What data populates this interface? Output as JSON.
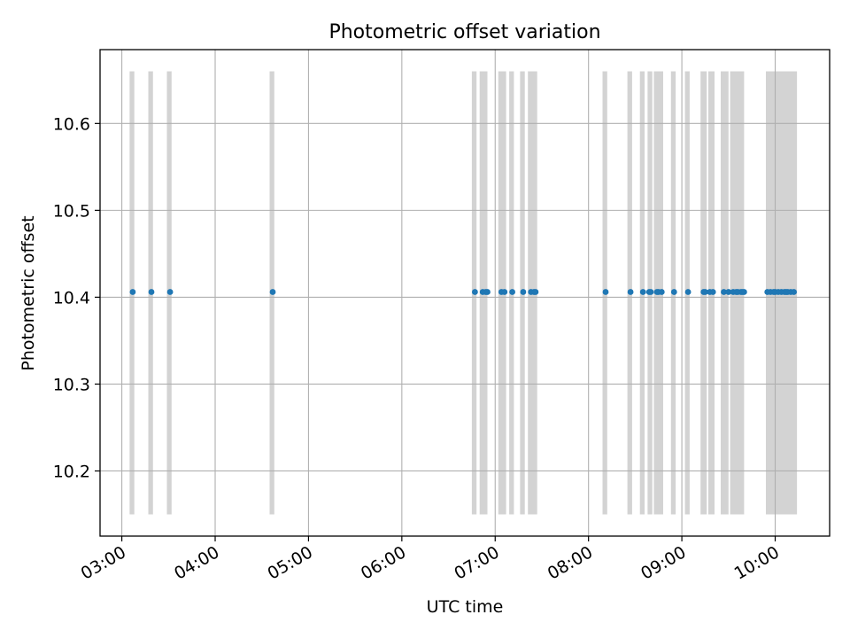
{
  "chart_data": {
    "type": "scatter",
    "title": "Photometric offset variation",
    "xlabel": "UTC time",
    "ylabel": "Photometric offset",
    "xlim": [
      "02:46",
      "10:35"
    ],
    "ylim": [
      10.125,
      10.685
    ],
    "grid": true,
    "x_ticks": [
      "03:00",
      "04:00",
      "05:00",
      "06:00",
      "07:00",
      "08:00",
      "09:00",
      "10:00"
    ],
    "y_ticks": [
      "10.2",
      "10.3",
      "10.4",
      "10.5",
      "10.6"
    ],
    "y_tick_values": [
      10.2,
      10.3,
      10.4,
      10.5,
      10.6
    ],
    "series": [
      {
        "values_y": 10.406,
        "x": [
          "03:07",
          "03:19",
          "03:31",
          "04:37",
          "06:47",
          "06:52",
          "06:54",
          "06:55",
          "07:04",
          "07:06",
          "07:11",
          "07:18",
          "07:23",
          "07:25",
          "07:26",
          "08:11",
          "08:27",
          "08:35",
          "08:39",
          "08:40",
          "08:44",
          "08:45",
          "08:47",
          "08:55",
          "09:04",
          "09:14",
          "09:15",
          "09:18",
          "09:20",
          "09:27",
          "09:30",
          "09:33",
          "09:35",
          "09:36",
          "09:38",
          "09:39",
          "09:40",
          "09:55",
          "09:57",
          "09:59",
          "10:00",
          "10:02",
          "10:04",
          "10:06",
          "10:07",
          "10:08",
          "10:10",
          "10:12"
        ],
        "color": "#1f77b4"
      }
    ],
    "shaded_intervals": {
      "color": "#d3d3d3",
      "y_range": [
        10.15,
        10.66
      ],
      "intervals": [
        [
          "03:05",
          "03:08"
        ],
        [
          "03:17",
          "03:20"
        ],
        [
          "03:29",
          "03:32"
        ],
        [
          "04:35",
          "04:38"
        ],
        [
          "06:45",
          "06:48"
        ],
        [
          "06:50",
          "06:55"
        ],
        [
          "07:02",
          "07:07"
        ],
        [
          "07:09",
          "07:12"
        ],
        [
          "07:16",
          "07:19"
        ],
        [
          "07:21",
          "07:27"
        ],
        [
          "08:09",
          "08:12"
        ],
        [
          "08:25",
          "08:28"
        ],
        [
          "08:33",
          "08:36"
        ],
        [
          "08:38",
          "08:41"
        ],
        [
          "08:42",
          "08:48"
        ],
        [
          "08:53",
          "08:56"
        ],
        [
          "09:02",
          "09:05"
        ],
        [
          "09:12",
          "09:16"
        ],
        [
          "09:17",
          "09:21"
        ],
        [
          "09:25",
          "09:30"
        ],
        [
          "09:31",
          "09:40"
        ],
        [
          "09:54",
          "10:14"
        ]
      ]
    }
  }
}
